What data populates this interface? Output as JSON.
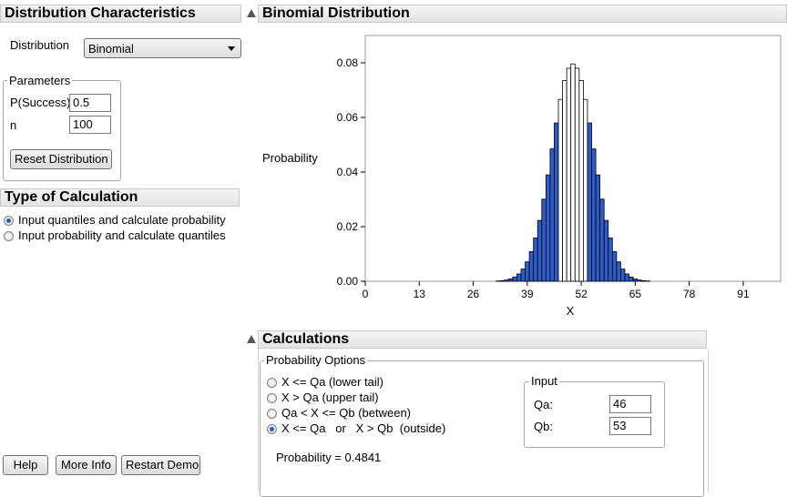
{
  "left_panel": {
    "header": "Distribution Characteristics",
    "distribution_label": "Distribution",
    "distribution_value": "Binomial",
    "parameters": {
      "legend": "Parameters",
      "p_label": "P(Success)",
      "p_value": "0.5",
      "n_label": "n",
      "n_value": "100",
      "reset_label": "Reset Distribution"
    },
    "calc_type": {
      "header": "Type of Calculation",
      "options": [
        {
          "label": "Input quantiles and calculate probability",
          "selected": true
        },
        {
          "label": "Input probability and calculate quantiles",
          "selected": false
        }
      ]
    },
    "buttons": {
      "help": "Help",
      "more_info": "More Info",
      "restart": "Restart Demo"
    }
  },
  "chart_panel": {
    "header": "Binomial Distribution"
  },
  "chart_data": {
    "type": "bar",
    "title": "",
    "xlabel": "X",
    "ylabel": "Probability",
    "xlim": [
      0,
      100
    ],
    "ylim": [
      0,
      0.09
    ],
    "xticks": [
      "0",
      "13",
      "26",
      "39",
      "52",
      "65",
      "78",
      "91"
    ],
    "yticks": [
      "0.00",
      "0.02",
      "0.04",
      "0.06",
      "0.08"
    ],
    "distribution": {
      "name": "Binomial",
      "n": 100,
      "p": 0.5
    },
    "shaded_rule": "X <= 46 or X > 53",
    "colors": {
      "shaded": "#2e5cc8",
      "unshaded": "#ffffff",
      "outline": "#000000"
    }
  },
  "calculations": {
    "header": "Calculations",
    "options_legend": "Probability Options",
    "options": [
      {
        "label": "X <= Qa (lower tail)",
        "selected": false
      },
      {
        "label": "X > Qa (upper tail)",
        "selected": false
      },
      {
        "label": "Qa < X <= Qb (between)",
        "selected": false
      },
      {
        "label": "X <= Qa   or   X > Qb  (outside)",
        "selected": true
      }
    ],
    "input_legend": "Input",
    "qa_label": "Qa:",
    "qa_value": "46",
    "qb_label": "Qb:",
    "qb_value": "53",
    "probability_text": "Probability = 0.4841"
  }
}
